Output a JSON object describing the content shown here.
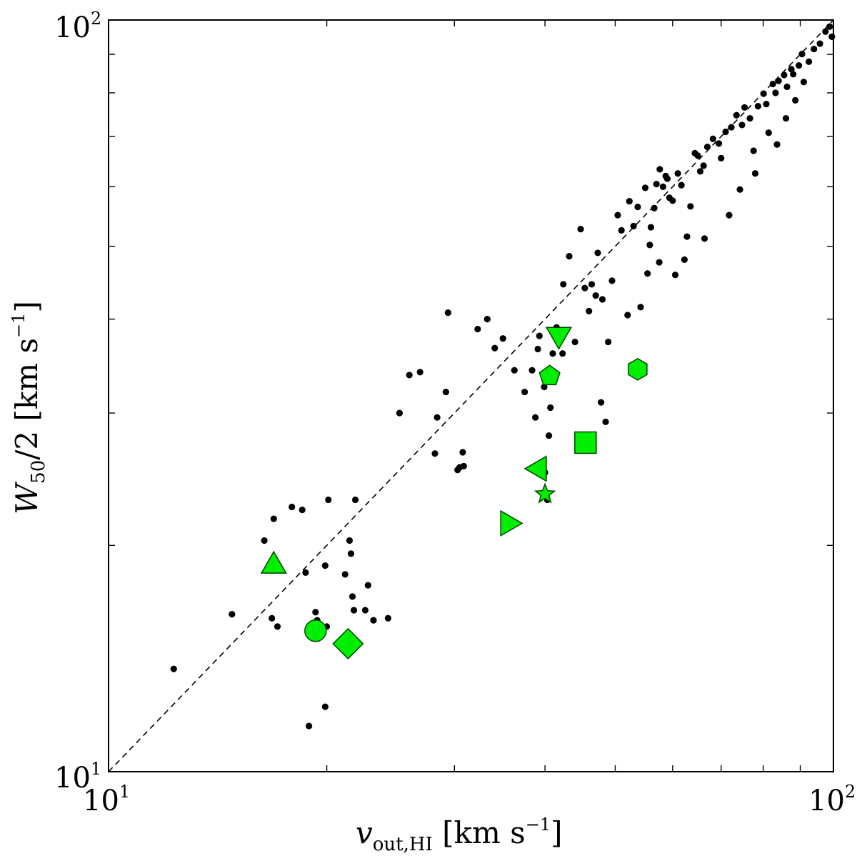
{
  "chart_data": {
    "type": "scatter",
    "xscale": "log",
    "yscale": "log",
    "xlim": [
      10,
      100
    ],
    "ylim": [
      10,
      100
    ],
    "xlabel": {
      "base": "v",
      "sub": "out,HI",
      "unit_prefix": " [km s",
      "sup": "−1",
      "unit_suffix": "]"
    },
    "ylabel": {
      "base": "W",
      "sub": "50",
      "mid": "/2 [km s",
      "sup": "−1",
      "unit_suffix": "]"
    },
    "tick_labels": {
      "x": [
        {
          "value": 10,
          "base": "10",
          "exp": "1"
        },
        {
          "value": 100,
          "base": "10",
          "exp": "2"
        }
      ],
      "y": [
        {
          "value": 10,
          "base": "10",
          "exp": "1"
        },
        {
          "value": 100,
          "base": "10",
          "exp": "2"
        }
      ]
    },
    "grid": false,
    "reference_line": {
      "style": "dashed",
      "x": [
        10,
        100
      ],
      "y": [
        10,
        100
      ],
      "color": "#000000"
    },
    "background_color": "#000000",
    "highlight_color": "#00ee00",
    "background_points": [
      [
        12.3,
        13.7
      ],
      [
        14.8,
        16.2
      ],
      [
        16.4,
        20.3
      ],
      [
        16.8,
        16.0
      ],
      [
        16.9,
        21.7
      ],
      [
        17.1,
        15.6
      ],
      [
        17.9,
        22.5
      ],
      [
        18.5,
        22.3
      ],
      [
        18.7,
        18.4
      ],
      [
        18.9,
        11.5
      ],
      [
        19.3,
        16.3
      ],
      [
        19.4,
        15.9
      ],
      [
        19.9,
        18.8
      ],
      [
        19.9,
        12.2
      ],
      [
        20.0,
        15.6
      ],
      [
        20.1,
        23.0
      ],
      [
        21.2,
        18.3
      ],
      [
        21.5,
        20.3
      ],
      [
        21.6,
        19.5
      ],
      [
        21.7,
        17.1
      ],
      [
        21.8,
        16.4
      ],
      [
        21.9,
        23.0
      ],
      [
        22.6,
        16.4
      ],
      [
        22.8,
        17.7
      ],
      [
        23.2,
        15.9
      ],
      [
        24.3,
        16.0
      ],
      [
        25.2,
        30.0
      ],
      [
        26.0,
        33.7
      ],
      [
        26.9,
        34.0
      ],
      [
        28.2,
        26.5
      ],
      [
        28.4,
        29.6
      ],
      [
        29.2,
        32.0
      ],
      [
        29.4,
        40.8
      ],
      [
        30.3,
        25.2
      ],
      [
        30.5,
        25.4
      ],
      [
        30.8,
        26.6
      ],
      [
        30.9,
        25.5
      ],
      [
        32.3,
        38.8
      ],
      [
        33.3,
        40.0
      ],
      [
        34.1,
        36.6
      ],
      [
        35.0,
        37.7
      ],
      [
        36.3,
        34.2
      ],
      [
        37.5,
        32.0
      ],
      [
        38.4,
        34.2
      ],
      [
        38.8,
        29.6
      ],
      [
        39.1,
        36.5
      ],
      [
        39.3,
        38.0
      ],
      [
        39.9,
        32.5
      ],
      [
        40.0,
        25.0
      ],
      [
        40.3,
        23.0
      ],
      [
        40.5,
        28.0
      ],
      [
        40.7,
        30.5
      ],
      [
        41.0,
        36.0
      ],
      [
        41.5,
        39.0
      ],
      [
        42.4,
        44.5
      ],
      [
        43.2,
        48.5
      ],
      [
        44.8,
        52.7
      ],
      [
        45.4,
        44.0
      ],
      [
        46.4,
        44.5
      ],
      [
        47.0,
        43.0
      ],
      [
        47.3,
        49.0
      ],
      [
        47.8,
        31.0
      ],
      [
        48.5,
        29.2
      ],
      [
        48.9,
        37.3
      ],
      [
        49.5,
        45.0
      ],
      [
        50.4,
        55.0
      ],
      [
        51.0,
        52.5
      ],
      [
        52.3,
        57.4
      ],
      [
        53.0,
        53.2
      ],
      [
        53.7,
        56.4
      ],
      [
        55.0,
        59.8
      ],
      [
        55.4,
        46.0
      ],
      [
        55.8,
        50.2
      ],
      [
        56.0,
        53.0
      ],
      [
        56.6,
        56.2
      ],
      [
        57.0,
        60.5
      ],
      [
        57.6,
        63.3
      ],
      [
        58.2,
        60.0
      ],
      [
        58.7,
        62.0
      ],
      [
        59.0,
        61.5
      ],
      [
        59.4,
        58.0
      ],
      [
        60.0,
        57.5
      ],
      [
        61.0,
        62.5
      ],
      [
        61.7,
        60.3
      ],
      [
        62.8,
        51.5
      ],
      [
        63.5,
        56.5
      ],
      [
        64.4,
        66.5
      ],
      [
        65.0,
        66.0
      ],
      [
        65.5,
        62.9
      ],
      [
        66.2,
        64.0
      ],
      [
        67.0,
        67.8
      ],
      [
        68.2,
        69.5
      ],
      [
        69.5,
        68.5
      ],
      [
        70.0,
        65.5
      ],
      [
        71.0,
        71.0
      ],
      [
        72.3,
        72.0
      ],
      [
        73.5,
        74.7
      ],
      [
        74.8,
        72.5
      ],
      [
        75.4,
        76.5
      ],
      [
        76.7,
        74.0
      ],
      [
        77.6,
        67.0
      ],
      [
        78.7,
        76.8
      ],
      [
        80.1,
        79.8
      ],
      [
        80.8,
        77.3
      ],
      [
        81.4,
        70.8
      ],
      [
        82.5,
        82.2
      ],
      [
        83.2,
        80.0
      ],
      [
        84.0,
        83.0
      ],
      [
        85.5,
        84.5
      ],
      [
        86.3,
        81.5
      ],
      [
        87.5,
        86.0
      ],
      [
        88.0,
        84.7
      ],
      [
        89.6,
        87.0
      ],
      [
        90.5,
        90.1
      ],
      [
        92.5,
        88.0
      ],
      [
        94.0,
        91.5
      ],
      [
        95.8,
        93.0
      ],
      [
        97.5,
        96.5
      ],
      [
        98.8,
        98.0
      ],
      [
        99.5,
        95.0
      ],
      [
        42.3,
        36.0
      ],
      [
        44.0,
        37.3
      ],
      [
        46.0,
        41.0
      ],
      [
        48.0,
        42.5
      ],
      [
        52.0,
        40.5
      ],
      [
        54.2,
        41.5
      ],
      [
        57.5,
        47.6
      ],
      [
        60.5,
        45.8
      ],
      [
        62.3,
        48.0
      ],
      [
        66.4,
        51.2
      ],
      [
        71.8,
        55.0
      ],
      [
        74.3,
        59.5
      ],
      [
        78.0,
        62.5
      ],
      [
        83.6,
        68.3
      ],
      [
        86.0,
        74.0
      ],
      [
        88.6,
        78.2
      ],
      [
        91.0,
        82.7
      ]
    ],
    "highlighted_points": [
      {
        "marker": "triangle-up",
        "x": 16.9,
        "y": 18.9
      },
      {
        "marker": "circle",
        "x": 19.3,
        "y": 15.4
      },
      {
        "marker": "diamond",
        "x": 21.4,
        "y": 14.8
      },
      {
        "marker": "triangle-right",
        "x": 35.8,
        "y": 21.4
      },
      {
        "marker": "star",
        "x": 40.0,
        "y": 23.4
      },
      {
        "marker": "triangle-left",
        "x": 39.0,
        "y": 25.3
      },
      {
        "marker": "square",
        "x": 45.5,
        "y": 27.4
      },
      {
        "marker": "pentagon",
        "x": 40.6,
        "y": 33.6
      },
      {
        "marker": "triangle-down",
        "x": 41.8,
        "y": 37.9
      },
      {
        "marker": "hexagon",
        "x": 53.7,
        "y": 34.3
      }
    ]
  }
}
